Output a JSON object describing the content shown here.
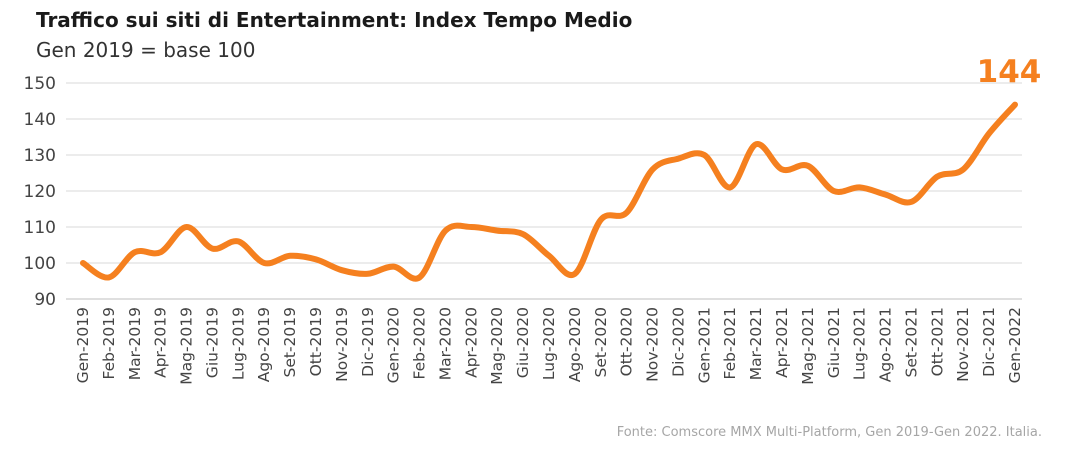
{
  "title": "Traffico sui siti di Entertainment: Index Tempo Medio",
  "subtitle": "Gen 2019 = base 100",
  "source": "Fonte: Comscore MMX Multi-Platform, Gen 2019-Gen 2022. Italia.",
  "colors": {
    "line": "#F5801F",
    "grid": "#d9d9d9",
    "axis": "#bfbfbf"
  },
  "chart_data": {
    "type": "line",
    "title": "Traffico sui siti di Entertainment: Index Tempo Medio",
    "subtitle": "Gen 2019 = base 100",
    "xlabel": "",
    "ylabel": "",
    "ylim": [
      90,
      150
    ],
    "yticks": [
      90,
      100,
      110,
      120,
      130,
      140,
      150
    ],
    "grid": true,
    "legend": "none",
    "categories": [
      "Gen-2019",
      "Feb-2019",
      "Mar-2019",
      "Apr-2019",
      "Mag-2019",
      "Giu-2019",
      "Lug-2019",
      "Ago-2019",
      "Set-2019",
      "Ott-2019",
      "Nov-2019",
      "Dic-2019",
      "Gen-2020",
      "Feb-2020",
      "Mar-2020",
      "Apr-2020",
      "Mag-2020",
      "Giu-2020",
      "Lug-2020",
      "Ago-2020",
      "Set-2020",
      "Ott-2020",
      "Nov-2020",
      "Dic-2020",
      "Gen-2021",
      "Feb-2021",
      "Mar-2021",
      "Apr-2021",
      "Mag-2021",
      "Giu-2021",
      "Lug-2021",
      "Ago-2021",
      "Set-2021",
      "Ott-2021",
      "Nov-2021",
      "Dic-2021",
      "Gen-2022"
    ],
    "series": [
      {
        "values": [
          100,
          96,
          103,
          103,
          110,
          104,
          106,
          100,
          102,
          101,
          98,
          97,
          99,
          96,
          109,
          110,
          109,
          108,
          102,
          97,
          112,
          114,
          126,
          129,
          130,
          121,
          133,
          126,
          127,
          120,
          121,
          119,
          117,
          124,
          126,
          136,
          144
        ]
      }
    ],
    "end_label": "144"
  }
}
